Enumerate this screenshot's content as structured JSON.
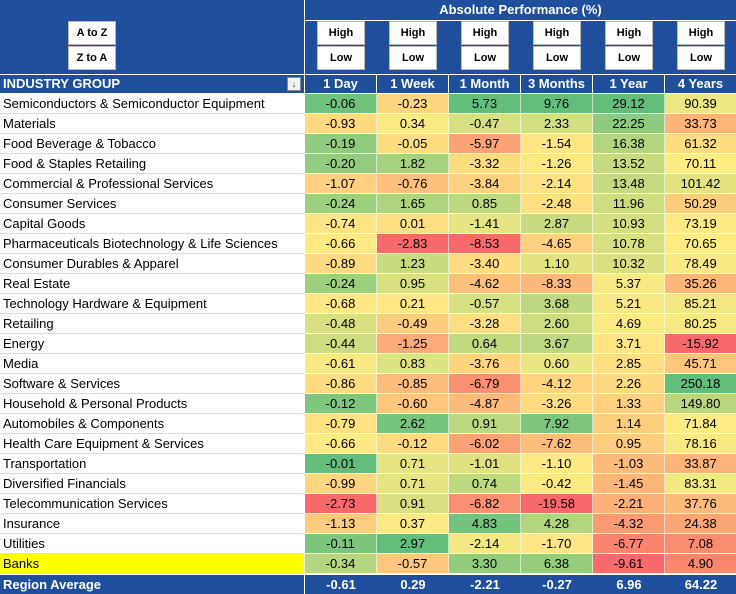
{
  "sort_buttons": {
    "a_to_z": "A to Z",
    "z_to_a": "Z to A"
  },
  "header": {
    "title": "Absolute Performance (%)",
    "high_label": "High",
    "low_label": "Low"
  },
  "columns": {
    "name": "INDUSTRY GROUP",
    "periods": [
      "1 Day",
      "1 Week",
      "1 Month",
      "3 Months",
      "1 Year",
      "4 Years"
    ]
  },
  "filter_icon": "dropdown-filter-icon",
  "colors": {
    "header_bg": "#1f4e9c",
    "highlight_row": "#ffff00",
    "scale_low": "#f8696b",
    "scale_mid": "#ffeb84",
    "scale_high": "#63be7b"
  },
  "rows": [
    {
      "name": "Semiconductors & Semiconductor Equipment",
      "values": [
        "-0.06",
        "-0.23",
        "5.73",
        "9.76",
        "29.12",
        "90.39"
      ]
    },
    {
      "name": "Materials",
      "values": [
        "-0.93",
        "0.34",
        "-0.47",
        "2.33",
        "22.25",
        "33.73"
      ]
    },
    {
      "name": "Food Beverage & Tobacco",
      "values": [
        "-0.19",
        "-0.05",
        "-5.97",
        "-1.54",
        "16.38",
        "61.32"
      ]
    },
    {
      "name": "Food & Staples Retailing",
      "values": [
        "-0.20",
        "1.82",
        "-3.32",
        "-1.26",
        "13.52",
        "70.11"
      ]
    },
    {
      "name": "Commercial & Professional Services",
      "values": [
        "-1.07",
        "-0.76",
        "-3.84",
        "-2.14",
        "13.48",
        "101.42"
      ]
    },
    {
      "name": "Consumer Services",
      "values": [
        "-0.24",
        "1.65",
        "0.85",
        "-2.48",
        "11.96",
        "50.29"
      ]
    },
    {
      "name": "Capital Goods",
      "values": [
        "-0.74",
        "0.01",
        "-1.41",
        "2.87",
        "10.93",
        "73.19"
      ]
    },
    {
      "name": "Pharmaceuticals Biotechnology & Life Sciences",
      "values": [
        "-0.66",
        "-2.83",
        "-8.53",
        "-4.65",
        "10.78",
        "70.65"
      ]
    },
    {
      "name": "Consumer Durables & Apparel",
      "values": [
        "-0.89",
        "1.23",
        "-3.40",
        "1.10",
        "10.32",
        "78.49"
      ]
    },
    {
      "name": "Real Estate",
      "values": [
        "-0.24",
        "0.95",
        "-4.62",
        "-8.33",
        "5.37",
        "35.26"
      ]
    },
    {
      "name": "Technology Hardware & Equipment",
      "values": [
        "-0.68",
        "0.21",
        "-0.57",
        "3.68",
        "5.21",
        "85.21"
      ]
    },
    {
      "name": "Retailing",
      "values": [
        "-0.48",
        "-0.49",
        "-3.28",
        "2.60",
        "4.69",
        "80.25"
      ]
    },
    {
      "name": "Energy",
      "values": [
        "-0.44",
        "-1.25",
        "0.64",
        "3.67",
        "3.71",
        "-15.92"
      ]
    },
    {
      "name": "Media",
      "values": [
        "-0.61",
        "0.83",
        "-3.76",
        "0.60",
        "2.85",
        "45.71"
      ]
    },
    {
      "name": "Software & Services",
      "values": [
        "-0.86",
        "-0.85",
        "-6.79",
        "-4.12",
        "2.26",
        "250.18"
      ]
    },
    {
      "name": "Household & Personal Products",
      "values": [
        "-0.12",
        "-0.60",
        "-4.87",
        "-3.26",
        "1.33",
        "149.80"
      ]
    },
    {
      "name": "Automobiles & Components",
      "values": [
        "-0.79",
        "2.62",
        "0.91",
        "7.92",
        "1.14",
        "71.84"
      ]
    },
    {
      "name": "Health Care Equipment & Services",
      "values": [
        "-0.66",
        "-0.12",
        "-6.02",
        "-7.62",
        "0.95",
        "78.16"
      ]
    },
    {
      "name": "Transportation",
      "values": [
        "-0.01",
        "0.71",
        "-1.01",
        "-1.10",
        "-1.03",
        "33.87"
      ]
    },
    {
      "name": "Diversified Financials",
      "values": [
        "-0.99",
        "0.71",
        "0.74",
        "-0.42",
        "-1.45",
        "83.31"
      ]
    },
    {
      "name": "Telecommunication Services",
      "values": [
        "-2.73",
        "0.91",
        "-6.82",
        "-19.58",
        "-2.21",
        "37.76"
      ]
    },
    {
      "name": "Insurance",
      "values": [
        "-1.13",
        "0.37",
        "4.83",
        "4.28",
        "-4.32",
        "24.38"
      ]
    },
    {
      "name": "Utilities",
      "values": [
        "-0.11",
        "2.97",
        "-2.14",
        "-1.70",
        "-6.77",
        "7.08"
      ]
    },
    {
      "name": "Banks",
      "values": [
        "-0.34",
        "-0.57",
        "3.30",
        "6.38",
        "-9.61",
        "4.90"
      ],
      "highlight": true
    }
  ],
  "footer": {
    "name": "Region Average",
    "values": [
      "-0.61",
      "0.29",
      "-2.21",
      "-0.27",
      "6.96",
      "64.22"
    ]
  }
}
